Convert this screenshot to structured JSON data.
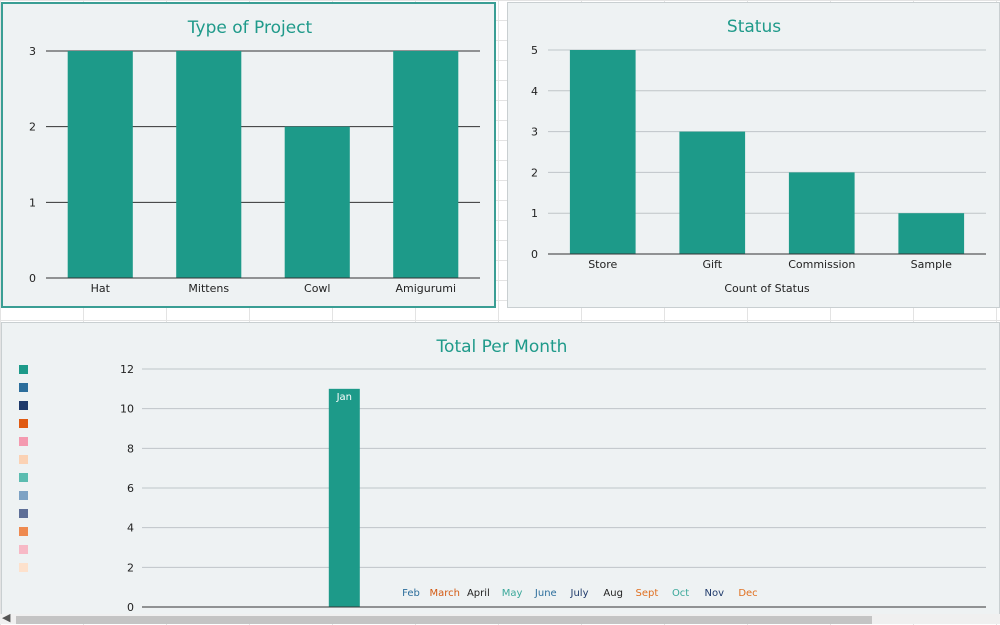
{
  "chart_data": [
    {
      "type": "bar",
      "title": "Type of Project",
      "categories": [
        "Hat",
        "Mittens",
        "Cowl",
        "Amigurumi"
      ],
      "values": [
        3,
        3,
        2,
        3
      ],
      "ylim": [
        0,
        3
      ],
      "yticks": [
        0,
        1,
        2,
        3
      ],
      "grid": true,
      "bar_color": "#1d9a89",
      "xlabel": "",
      "ylabel": ""
    },
    {
      "type": "bar",
      "title": "Status",
      "categories": [
        "Store",
        "Gift",
        "Commission",
        "Sample"
      ],
      "values": [
        5,
        3,
        2,
        1
      ],
      "ylim": [
        0,
        5
      ],
      "yticks": [
        0,
        1,
        2,
        3,
        4,
        5
      ],
      "grid": true,
      "bar_color": "#1d9a89",
      "xlabel": "Count of Status",
      "ylabel": ""
    },
    {
      "type": "bar",
      "title": "Total Per Month",
      "categories": [
        "Jan",
        "Feb",
        "March",
        "April",
        "May",
        "June",
        "July",
        "Aug",
        "Sept",
        "Oct",
        "Nov",
        "Dec"
      ],
      "values": [
        11,
        0,
        0,
        0,
        0,
        0,
        0,
        0,
        0,
        0,
        0,
        0
      ],
      "label_colors": [
        "#ffffff",
        "#2c6e9c",
        "#d45a12",
        "#222222",
        "#3aa89a",
        "#2c6e9c",
        "#1f3a6b",
        "#222222",
        "#e07020",
        "#3aa89a",
        "#1f3a6b",
        "#e07020"
      ],
      "ylim": [
        0,
        12
      ],
      "yticks": [
        0,
        2,
        4,
        6,
        8,
        10,
        12
      ],
      "grid": true,
      "legend": "left",
      "legend_colors": [
        "#1d9a89",
        "#2c6e9c",
        "#1f3a6b",
        "#e05a12",
        "#f49ab0",
        "#fbd2b4",
        "#5bbcb0",
        "#7da2c4",
        "#5e6f97",
        "#ee8a50",
        "#f7b9c6",
        "#fde1cc"
      ],
      "xlabel": "",
      "ylabel": ""
    }
  ]
}
